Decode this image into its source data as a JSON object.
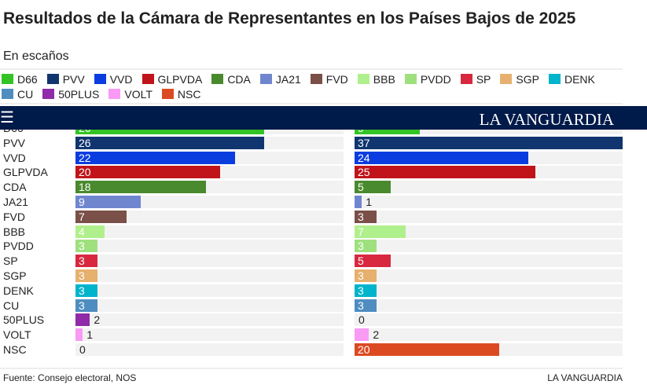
{
  "header": {
    "logo": "LA VANGUARDIA",
    "menu_icon": "hamburger-icon"
  },
  "footer": {
    "source": "Fuente: Consejo electoral, NOS",
    "brand": "LA VANGUARDIA"
  },
  "chart_data": {
    "type": "bar",
    "title": "Resultados de la Cámara de Representantes en los Países Bajos de 2025",
    "subtitle": "En escaños",
    "categories": [
      "D66",
      "PVV",
      "VVD",
      "GLPVDA",
      "CDA",
      "JA21",
      "FVD",
      "BBB",
      "PVDD",
      "SP",
      "SGP",
      "DENK",
      "CU",
      "50PLUS",
      "VOLT",
      "NSC"
    ],
    "colors": [
      "#33c325",
      "#10356f",
      "#0a3de0",
      "#c0141a",
      "#4a8a2e",
      "#6f86cf",
      "#7a5048",
      "#b0f08c",
      "#9fe07e",
      "#d8283f",
      "#e6b06e",
      "#00b4cc",
      "#4f8dc0",
      "#8f2aa8",
      "#f99af5",
      "#dc4a22"
    ],
    "series": [
      {
        "name": "left",
        "values": [
          26,
          26,
          22,
          20,
          18,
          9,
          7,
          4,
          3,
          3,
          3,
          3,
          3,
          2,
          1,
          0
        ]
      },
      {
        "name": "right",
        "values": [
          9,
          37,
          24,
          25,
          5,
          1,
          3,
          7,
          3,
          5,
          3,
          3,
          3,
          0,
          2,
          20
        ]
      }
    ],
    "xlim": [
      0,
      37
    ],
    "legend": "top"
  }
}
